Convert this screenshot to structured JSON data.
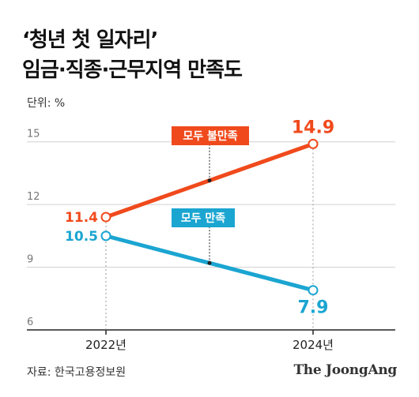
{
  "title_line1": "‘청년 첫 일자리’",
  "title_line2": "임금·직종·근무지역 만족도",
  "unit": "단위: %",
  "source": "자료: 한국고용정보원",
  "brand": "The JoongAng",
  "chart_data": {
    "type": "line",
    "x": [
      "2022년",
      "2024년"
    ],
    "ylim": [
      6,
      16.5
    ],
    "yticks": [
      6,
      9,
      12,
      15
    ],
    "grid": true,
    "series": [
      {
        "name": "모두 불만족",
        "values": [
          11.4,
          14.9
        ],
        "labels": [
          "11.4",
          "14.9"
        ],
        "color": "#f04a1c"
      },
      {
        "name": "모두 만족",
        "values": [
          10.5,
          7.9
        ],
        "labels": [
          "10.5",
          "7.9"
        ],
        "color": "#1ba5d1"
      }
    ]
  }
}
